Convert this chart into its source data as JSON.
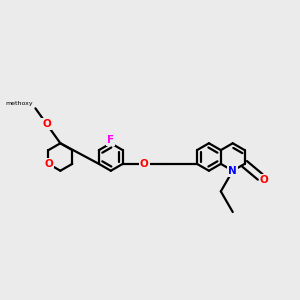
{
  "background_color": "#ebebeb",
  "bond_color": "#000000",
  "bond_width": 1.6,
  "atom_colors": {
    "O": "#ff0000",
    "N": "#0000ff",
    "F": "#ff00ff",
    "C": "#000000"
  },
  "figsize": [
    3.0,
    3.0
  ],
  "dpi": 100,
  "font_size_atom": 7.5
}
